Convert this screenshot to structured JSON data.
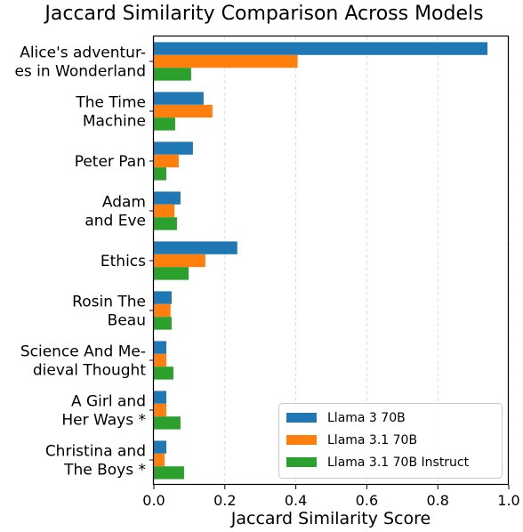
{
  "chart_data": {
    "type": "bar",
    "orientation": "horizontal",
    "title": "Jaccard Similarity Comparison Across Models",
    "xlabel": "Jaccard Similarity Score",
    "ylabel": "",
    "xlim": [
      0,
      1.0
    ],
    "xticks": [
      "0.0",
      "0.2",
      "0.4",
      "0.6",
      "0.8",
      "1.0"
    ],
    "grid": "vertical dashed",
    "legend_position": "lower-right",
    "categories": [
      [
        "Alice's adventur-",
        "es in Wonderland"
      ],
      [
        "The Time",
        "Machine"
      ],
      [
        "Peter Pan"
      ],
      [
        "Adam",
        "and Eve"
      ],
      [
        "Ethics"
      ],
      [
        "Rosin The",
        "Beau"
      ],
      [
        "Science And Me-",
        "dieval Thought"
      ],
      [
        "A Girl and",
        "Her Ways *"
      ],
      [
        "Christina and",
        "The Boys *"
      ]
    ],
    "series": [
      {
        "name": "Llama 3 70B",
        "color": "#1f77b4",
        "values": [
          0.94,
          0.14,
          0.11,
          0.075,
          0.235,
          0.05,
          0.035,
          0.035,
          0.035
        ]
      },
      {
        "name": "Llama 3.1 70B",
        "color": "#ff7f0e",
        "values": [
          0.405,
          0.165,
          0.07,
          0.058,
          0.145,
          0.047,
          0.035,
          0.035,
          0.03
        ]
      },
      {
        "name": "Llama 3.1 70B Instruct",
        "color": "#2ca02c",
        "values": [
          0.105,
          0.06,
          0.035,
          0.065,
          0.098,
          0.05,
          0.055,
          0.075,
          0.085
        ]
      }
    ]
  }
}
